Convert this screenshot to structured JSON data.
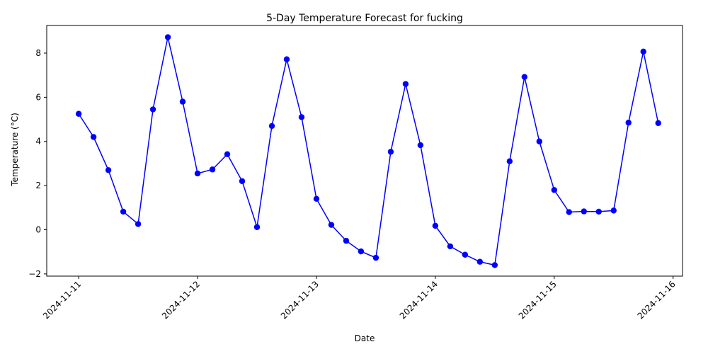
{
  "chart_data": {
    "type": "line",
    "title": "5-Day Temperature Forecast for fucking",
    "xlabel": "Date",
    "ylabel": "Temperature (°C)",
    "x_ticks": [
      "2024-11-11",
      "2024-11-12",
      "2024-11-13",
      "2024-11-14",
      "2024-11-15",
      "2024-11-16"
    ],
    "y_ticks": [
      -2,
      0,
      2,
      4,
      6,
      8
    ],
    "xlim": [
      "2024-11-10 17:33",
      "2024-11-16 01:54"
    ],
    "ylim": [
      -2.1,
      9.25
    ],
    "grid": false,
    "legend": "none",
    "series": [
      {
        "color": "#0000ff",
        "marker": "circle",
        "points": [
          [
            "2024-11-11 00:00",
            5.25
          ],
          [
            "2024-11-11 03:00",
            4.2
          ],
          [
            "2024-11-11 06:00",
            2.7
          ],
          [
            "2024-11-11 09:00",
            0.82
          ],
          [
            "2024-11-11 12:00",
            0.26
          ],
          [
            "2024-11-11 15:00",
            5.45
          ],
          [
            "2024-11-11 18:00",
            8.72
          ],
          [
            "2024-11-11 21:00",
            5.8
          ],
          [
            "2024-11-12 00:00",
            2.55
          ],
          [
            "2024-11-12 03:00",
            2.73
          ],
          [
            "2024-11-12 06:00",
            3.42
          ],
          [
            "2024-11-12 09:00",
            2.2
          ],
          [
            "2024-11-12 12:00",
            0.12
          ],
          [
            "2024-11-12 15:00",
            4.7
          ],
          [
            "2024-11-12 18:00",
            7.72
          ],
          [
            "2024-11-12 21:00",
            5.1
          ],
          [
            "2024-11-13 00:00",
            1.4
          ],
          [
            "2024-11-13 03:00",
            0.22
          ],
          [
            "2024-11-13 06:00",
            -0.5
          ],
          [
            "2024-11-13 09:00",
            -0.98
          ],
          [
            "2024-11-13 12:00",
            -1.27
          ],
          [
            "2024-11-13 15:00",
            3.53
          ],
          [
            "2024-11-13 18:00",
            6.6
          ],
          [
            "2024-11-13 21:00",
            3.83
          ],
          [
            "2024-11-14 00:00",
            0.18
          ],
          [
            "2024-11-14 03:00",
            -0.75
          ],
          [
            "2024-11-14 06:00",
            -1.13
          ],
          [
            "2024-11-14 09:00",
            -1.45
          ],
          [
            "2024-11-14 12:00",
            -1.6
          ],
          [
            "2024-11-14 15:00",
            3.1
          ],
          [
            "2024-11-14 18:00",
            6.92
          ],
          [
            "2024-11-14 21:00",
            4.0
          ],
          [
            "2024-11-15 00:00",
            1.8
          ],
          [
            "2024-11-15 03:00",
            0.8
          ],
          [
            "2024-11-15 06:00",
            0.83
          ],
          [
            "2024-11-15 09:00",
            0.82
          ],
          [
            "2024-11-15 12:00",
            0.87
          ],
          [
            "2024-11-15 15:00",
            4.85
          ],
          [
            "2024-11-15 18:00",
            8.07
          ],
          [
            "2024-11-15 21:00",
            4.83
          ]
        ]
      }
    ]
  }
}
